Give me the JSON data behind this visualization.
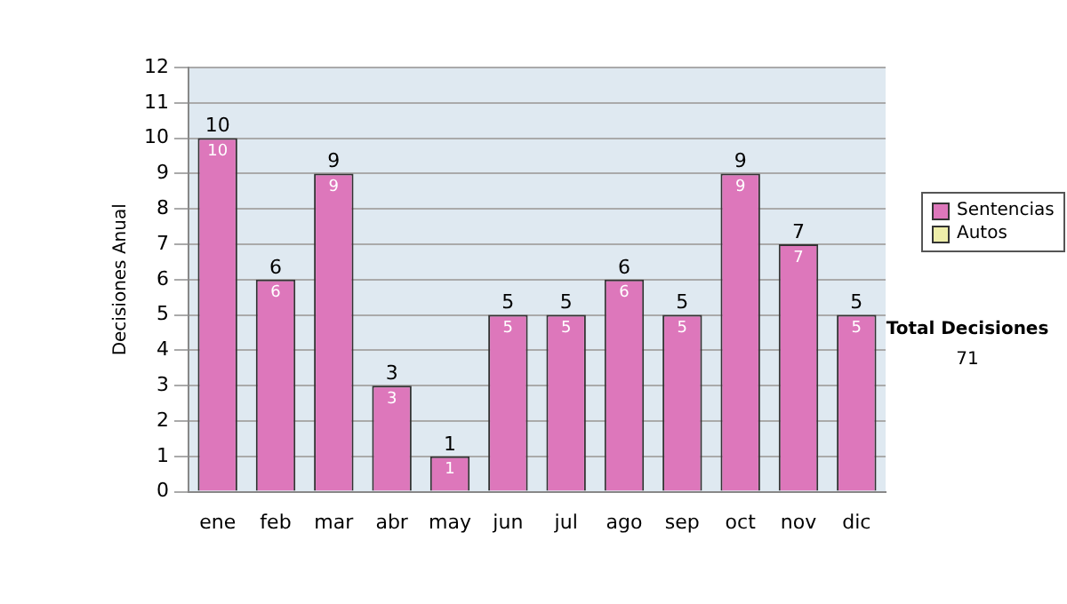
{
  "chart_data": {
    "type": "bar",
    "ylabel": "Decisiones Anual",
    "categories": [
      "ene",
      "feb",
      "mar",
      "abr",
      "may",
      "jun",
      "jul",
      "ago",
      "sep",
      "oct",
      "nov",
      "dic"
    ],
    "series": [
      {
        "name": "Sentencias",
        "color": "#dd77bb",
        "values": [
          10,
          6,
          9,
          3,
          1,
          5,
          5,
          6,
          5,
          9,
          7,
          5
        ],
        "value_labels": [
          "10",
          "6",
          "9",
          "3",
          "1",
          "5",
          "5",
          "6",
          "5",
          "9",
          "7",
          "5"
        ]
      },
      {
        "name": "Autos",
        "color": "#eeeeaa",
        "values": [
          0,
          0,
          0,
          0,
          0,
          0,
          0,
          0,
          0,
          0,
          0,
          0
        ]
      }
    ],
    "stacked": true,
    "totals": [
      "10",
      "6",
      "9",
      "3",
      "1",
      "5",
      "5",
      "6",
      "5",
      "9",
      "7",
      "5"
    ],
    "ylim": [
      0,
      12
    ],
    "yticks": [
      0,
      1,
      2,
      3,
      4,
      5,
      6,
      7,
      8,
      9,
      10,
      11,
      12
    ],
    "grid": "y",
    "legend": "right",
    "annotations": [
      "Total Decisiones",
      "71"
    ]
  }
}
